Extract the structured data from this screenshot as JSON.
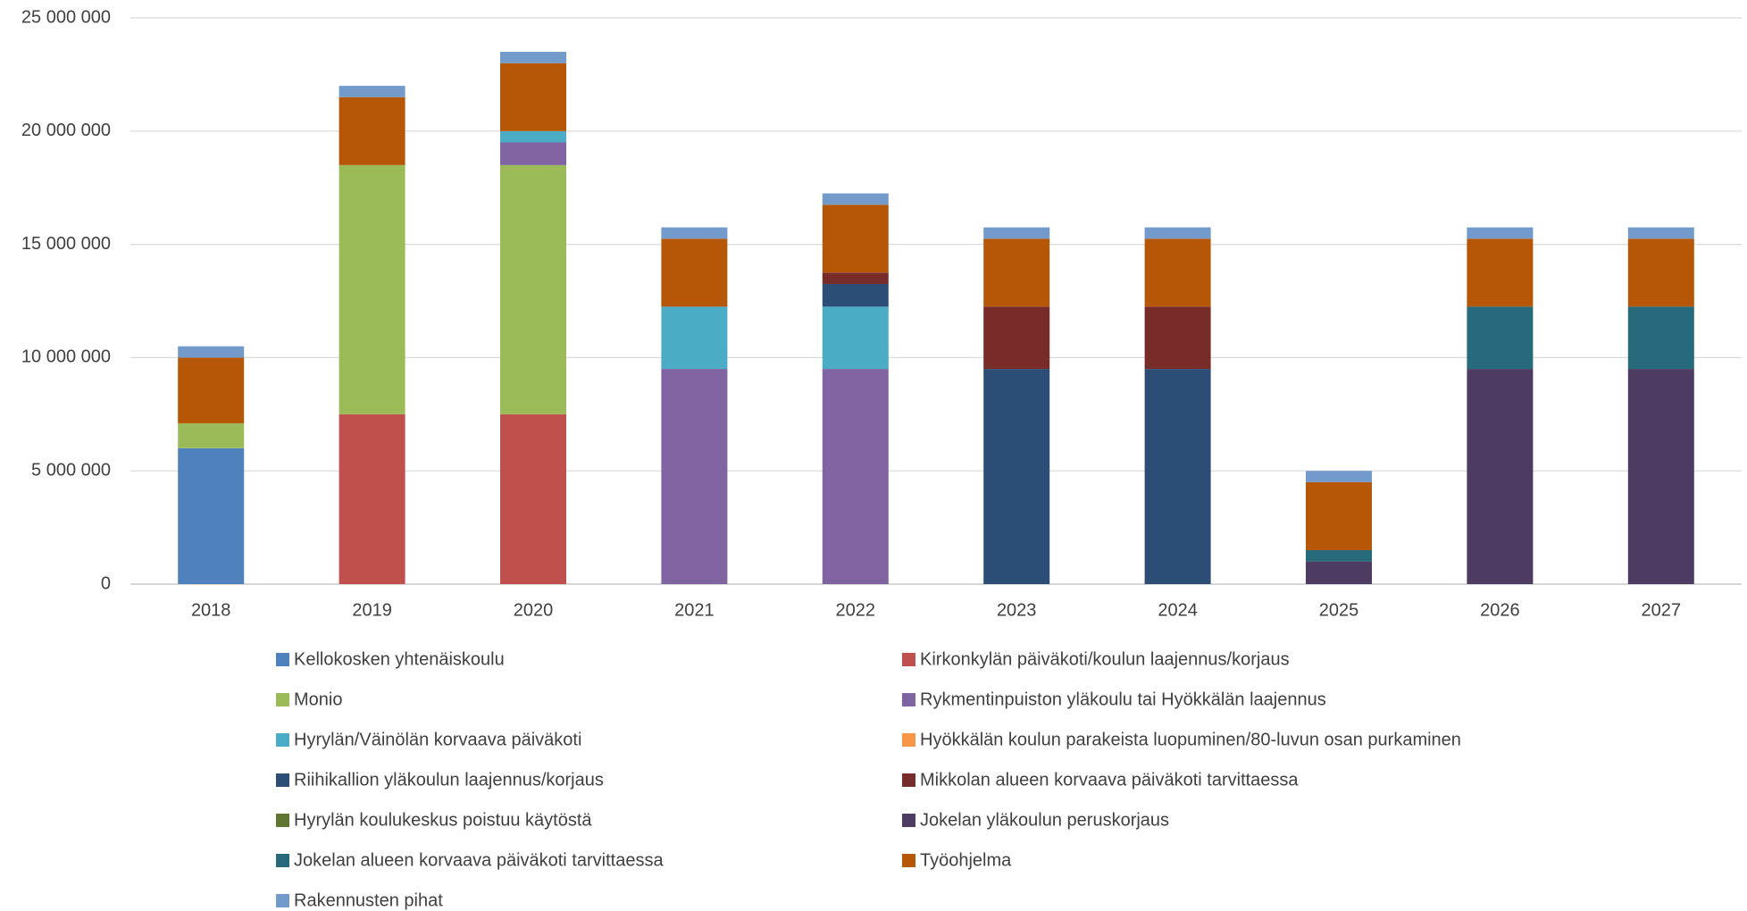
{
  "chart_data": {
    "type": "stacked_bar",
    "categories": [
      "2018",
      "2019",
      "2020",
      "2021",
      "2022",
      "2023",
      "2024",
      "2025",
      "2026",
      "2027"
    ],
    "series": [
      {
        "name": "Kellokosken yhtenäiskoulu",
        "color": "#4f81bd",
        "values": [
          6000000,
          null,
          null,
          null,
          null,
          null,
          null,
          null,
          null,
          null
        ]
      },
      {
        "name": "Kirkonkylän päiväkoti/koulun laajennus/korjaus",
        "color": "#c0504d",
        "values": [
          null,
          7500000,
          7500000,
          null,
          null,
          null,
          null,
          null,
          null,
          null
        ]
      },
      {
        "name": "Monio",
        "color": "#9bbb59",
        "values": [
          1100000,
          11000000,
          11000000,
          null,
          null,
          null,
          null,
          null,
          null,
          null
        ]
      },
      {
        "name": "Rykmentinpuiston yläkoulu tai Hyökkälän laajennus",
        "color": "#8064a2",
        "values": [
          null,
          null,
          1000000,
          9500000,
          9500000,
          null,
          null,
          null,
          null,
          null
        ]
      },
      {
        "name": "Hyrylän/Väinölän korvaava päiväkoti",
        "color": "#4bacc6",
        "values": [
          null,
          null,
          500000,
          2750000,
          2750000,
          null,
          null,
          null,
          null,
          null
        ]
      },
      {
        "name": "Hyökkälän koulun parakeista luopuminen/80-luvun osan purkaminen",
        "color": "#f79646",
        "values": [
          null,
          null,
          null,
          null,
          null,
          null,
          null,
          null,
          null,
          null
        ]
      },
      {
        "name": "Riihikallion yläkoulun laajennus/korjaus",
        "color": "#2c4d75",
        "values": [
          null,
          null,
          null,
          null,
          1000000,
          9500000,
          9500000,
          null,
          null,
          null
        ]
      },
      {
        "name": "Mikkolan alueen korvaava päiväkoti tarvittaessa",
        "color": "#772c2a",
        "values": [
          null,
          null,
          null,
          null,
          500000,
          2750000,
          2750000,
          null,
          null,
          null
        ]
      },
      {
        "name": "Hyrylän koulukeskus poistuu käytöstä",
        "color": "#5f7530",
        "values": [
          null,
          null,
          null,
          null,
          null,
          null,
          null,
          null,
          null,
          null
        ]
      },
      {
        "name": "Jokelan yläkoulun peruskorjaus",
        "color": "#4d3b62",
        "values": [
          null,
          null,
          null,
          null,
          null,
          null,
          null,
          1000000,
          9500000,
          9500000
        ]
      },
      {
        "name": "Jokelan alueen korvaava päiväkoti tarvittaessa",
        "color": "#276a7c",
        "values": [
          null,
          null,
          null,
          null,
          null,
          null,
          null,
          500000,
          2750000,
          2750000
        ]
      },
      {
        "name": "Työohjelma",
        "color": "#b65708",
        "values": [
          2900000,
          3000000,
          3000000,
          3000000,
          3000000,
          3000000,
          3000000,
          3000000,
          3000000,
          3000000
        ]
      },
      {
        "name": "Rakennusten pihat",
        "color": "#729aca",
        "values": [
          500000,
          500000,
          500000,
          500000,
          500000,
          500000,
          500000,
          500000,
          500000,
          500000
        ]
      }
    ],
    "ylim": [
      0,
      25000000
    ],
    "yticks": [
      0,
      {
        "value": 5000000,
        "label": "5 000 000"
      },
      {
        "value": 10000000,
        "label": "10 000 000"
      },
      {
        "value": 15000000,
        "label": "15 000 000"
      },
      {
        "value": 20000000,
        "label": "20 000 000"
      },
      {
        "value": 25000000,
        "label": "25 000 000"
      }
    ],
    "grid": true,
    "legend": "bottom"
  }
}
